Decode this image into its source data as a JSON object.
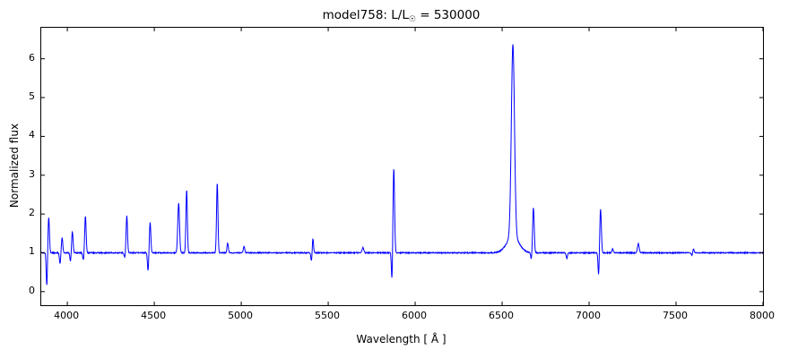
{
  "title": {
    "prefix": "model758: L/L",
    "sun_symbol": "☉",
    "suffix": " = 530000"
  },
  "chart_data": {
    "type": "line",
    "title": "model758: L/L_sun = 530000",
    "xlabel": "Wavelength [ Å ]",
    "ylabel": "Normalized flux",
    "line_color": "#0000ff",
    "axis_color": "#000000",
    "background_color": "#ffffff",
    "grid": false,
    "legend": false,
    "xlim": [
      3850,
      8000
    ],
    "ylim": [
      -0.35,
      6.8
    ],
    "x_ticks": [
      4000,
      4500,
      5000,
      5500,
      6000,
      6500,
      7000,
      7500,
      8000
    ],
    "y_ticks": [
      0,
      1,
      2,
      3,
      4,
      5,
      6
    ],
    "baseline_flux": 1.0,
    "noise_amplitude": 0.013,
    "sample_step": 1.5,
    "emission_peaks": [
      {
        "center": 3893,
        "height": 0.92,
        "sigma": 4
      },
      {
        "center": 3970,
        "height": 0.38,
        "sigma": 4
      },
      {
        "center": 4029,
        "height": 0.55,
        "sigma": 4
      },
      {
        "center": 4104,
        "height": 0.95,
        "sigma": 4
      },
      {
        "center": 4342,
        "height": 0.95,
        "sigma": 4
      },
      {
        "center": 4476,
        "height": 0.78,
        "sigma": 4
      },
      {
        "center": 4640,
        "height": 1.28,
        "sigma": 5
      },
      {
        "center": 4686,
        "height": 1.62,
        "sigma": 4
      },
      {
        "center": 4862,
        "height": 1.8,
        "sigma": 4
      },
      {
        "center": 4922,
        "height": 0.25,
        "sigma": 4
      },
      {
        "center": 5016,
        "height": 0.17,
        "sigma": 4
      },
      {
        "center": 5412,
        "height": 0.38,
        "sigma": 3.5
      },
      {
        "center": 5700,
        "height": 0.13,
        "sigma": 5
      },
      {
        "center": 5877,
        "height": 2.17,
        "sigma": 4.5
      },
      {
        "center": 6562,
        "height": 4.95,
        "sigma": 9
      },
      {
        "center": 6562,
        "height": 0.42,
        "sigma": 35
      },
      {
        "center": 6680,
        "height": 1.16,
        "sigma": 4.5
      },
      {
        "center": 7066,
        "height": 1.12,
        "sigma": 4.5
      },
      {
        "center": 7135,
        "height": 0.1,
        "sigma": 4
      },
      {
        "center": 7283,
        "height": 0.23,
        "sigma": 5
      },
      {
        "center": 7600,
        "height": 0.1,
        "sigma": 4
      }
    ],
    "absorption_dips": [
      {
        "center": 3882,
        "depth": 0.85,
        "sigma": 3.5
      },
      {
        "center": 3958,
        "depth": 0.28,
        "sigma": 3.5
      },
      {
        "center": 4018,
        "depth": 0.22,
        "sigma": 3.5
      },
      {
        "center": 4092,
        "depth": 0.18,
        "sigma": 3.5
      },
      {
        "center": 4330,
        "depth": 0.12,
        "sigma": 3.5
      },
      {
        "center": 4464,
        "depth": 0.45,
        "sigma": 3.5
      },
      {
        "center": 5404,
        "depth": 0.22,
        "sigma": 3.5
      },
      {
        "center": 5867,
        "depth": 0.78,
        "sigma": 3.5
      },
      {
        "center": 6668,
        "depth": 0.17,
        "sigma": 3.5
      },
      {
        "center": 6872,
        "depth": 0.15,
        "sigma": 3.5
      },
      {
        "center": 7055,
        "depth": 0.6,
        "sigma": 3.5
      },
      {
        "center": 7592,
        "depth": 0.08,
        "sigma": 3.5
      }
    ]
  }
}
